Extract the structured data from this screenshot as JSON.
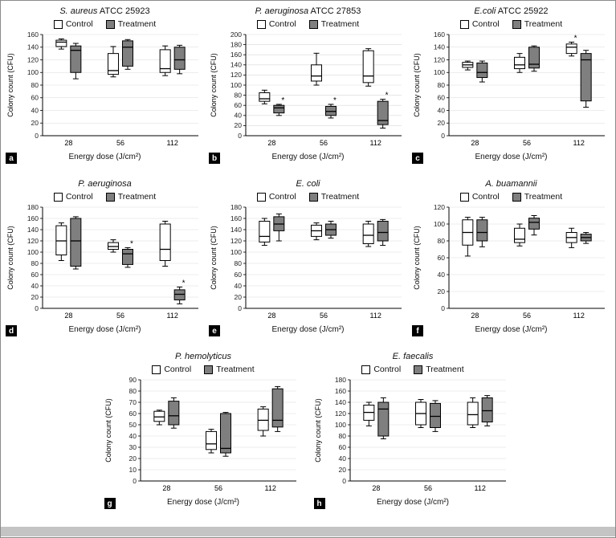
{
  "figure": {
    "xlabel": "Energy dose (J/cm²)",
    "ylabel": "Colony count (CFU)",
    "legend": {
      "control": "Control",
      "treatment": "Treatment"
    },
    "colors": {
      "control": "#ffffff",
      "treatment": "#7f7f7f",
      "box_border": "#000000",
      "grid": "#d9d9d9",
      "axis": "#000000",
      "badge_bg": "#000000",
      "badge_fg": "#ffffff",
      "bottom_bar": "#c4c4c4"
    }
  },
  "chart_data": [
    {
      "type": "boxplot",
      "panel": "a",
      "title_italic": "S. aureus",
      "title_rest": " ATCC 25923",
      "categories": [
        "28",
        "56",
        "112"
      ],
      "ylim": [
        0,
        160
      ],
      "ystep": 20,
      "series": [
        {
          "name": "Control",
          "boxes": [
            [
              137,
              141,
              148,
              151,
              153
            ],
            [
              93,
              97,
              103,
              130,
              141
            ],
            [
              95,
              100,
              106,
              136,
              142
            ]
          ],
          "sig": [
            false,
            false,
            false
          ]
        },
        {
          "name": "Treatment",
          "boxes": [
            [
              90,
              100,
              135,
              142,
              146
            ],
            [
              105,
              110,
              140,
              150,
              152
            ],
            [
              98,
              105,
              120,
              140,
              143
            ]
          ],
          "sig": [
            false,
            false,
            false
          ]
        }
      ]
    },
    {
      "type": "boxplot",
      "panel": "b",
      "title_italic": "P. aeruginosa",
      "title_rest": " ATCC 27853",
      "categories": [
        "28",
        "56",
        "112"
      ],
      "ylim": [
        0,
        200
      ],
      "ystep": 20,
      "series": [
        {
          "name": "Control",
          "boxes": [
            [
              63,
              68,
              73,
              85,
              90
            ],
            [
              100,
              108,
              118,
              140,
              163
            ],
            [
              98,
              105,
              118,
              168,
              172
            ]
          ],
          "sig": [
            false,
            false,
            false
          ]
        },
        {
          "name": "Treatment",
          "boxes": [
            [
              40,
              45,
              55,
              60,
              62
            ],
            [
              35,
              40,
              48,
              58,
              62
            ],
            [
              15,
              22,
              30,
              68,
              72
            ]
          ],
          "sig": [
            true,
            true,
            true
          ]
        }
      ]
    },
    {
      "type": "boxplot",
      "panel": "c",
      "title_italic": "E.coli",
      "title_rest": " ATCC 25922",
      "categories": [
        "28",
        "56",
        "112"
      ],
      "ylim": [
        0,
        160
      ],
      "ystep": 20,
      "series": [
        {
          "name": "Control",
          "boxes": [
            [
              104,
              108,
              112,
              116,
              118
            ],
            [
              100,
              106,
              112,
              124,
              130
            ],
            [
              126,
              130,
              140,
              145,
              148
            ]
          ],
          "sig": [
            false,
            false,
            true
          ]
        },
        {
          "name": "Treatment",
          "boxes": [
            [
              85,
              92,
              100,
              115,
              118
            ],
            [
              102,
              107,
              113,
              140,
              142
            ],
            [
              45,
              55,
              120,
              130,
              135
            ]
          ],
          "sig": [
            false,
            false,
            false
          ]
        }
      ]
    },
    {
      "type": "boxplot",
      "panel": "d",
      "title_italic": "P. aeruginosa",
      "title_rest": "",
      "categories": [
        "28",
        "56",
        "112"
      ],
      "ylim": [
        0,
        180
      ],
      "ystep": 20,
      "series": [
        {
          "name": "Control",
          "boxes": [
            [
              85,
              95,
              120,
              147,
              152
            ],
            [
              100,
              105,
              110,
              117,
              122
            ],
            [
              75,
              85,
              105,
              150,
              155
            ]
          ],
          "sig": [
            false,
            false,
            false
          ]
        },
        {
          "name": "Treatment",
          "boxes": [
            [
              70,
              75,
              120,
              160,
              163
            ],
            [
              73,
              78,
              97,
              105,
              108
            ],
            [
              8,
              15,
              25,
              33,
              38
            ]
          ],
          "sig": [
            false,
            true,
            true
          ]
        }
      ]
    },
    {
      "type": "boxplot",
      "panel": "e",
      "title_italic": "E. coli",
      "title_rest": "",
      "categories": [
        "28",
        "56",
        "112"
      ],
      "ylim": [
        0,
        180
      ],
      "ystep": 20,
      "series": [
        {
          "name": "Control",
          "boxes": [
            [
              112,
              118,
              128,
              155,
              160
            ],
            [
              122,
              128,
              138,
              148,
              152
            ],
            [
              110,
              115,
              130,
              150,
              155
            ]
          ],
          "sig": [
            false,
            false,
            false
          ]
        },
        {
          "name": "Treatment",
          "boxes": [
            [
              120,
              138,
              150,
              163,
              168
            ],
            [
              125,
              130,
              140,
              150,
              155
            ],
            [
              112,
              120,
              135,
              155,
              158
            ]
          ],
          "sig": [
            false,
            false,
            false
          ]
        }
      ]
    },
    {
      "type": "boxplot",
      "panel": "f",
      "title_italic": "A. buamannii",
      "title_rest": "",
      "categories": [
        "28",
        "56",
        "112"
      ],
      "ylim": [
        0,
        120
      ],
      "ystep": 20,
      "series": [
        {
          "name": "Control",
          "boxes": [
            [
              62,
              75,
              90,
              105,
              108
            ],
            [
              74,
              78,
              82,
              95,
              100
            ],
            [
              72,
              78,
              84,
              90,
              95
            ]
          ],
          "sig": [
            false,
            false,
            false
          ]
        },
        {
          "name": "Treatment",
          "boxes": [
            [
              73,
              80,
              90,
              105,
              108
            ],
            [
              87,
              94,
              102,
              107,
              110
            ],
            [
              77,
              80,
              84,
              88,
              90
            ]
          ],
          "sig": [
            false,
            false,
            false
          ]
        }
      ]
    },
    {
      "type": "boxplot",
      "panel": "g",
      "title_italic": "P. hemolyticus",
      "title_rest": "",
      "categories": [
        "28",
        "56",
        "112"
      ],
      "ylim": [
        0,
        90
      ],
      "ystep": 10,
      "series": [
        {
          "name": "Control",
          "boxes": [
            [
              50,
              53,
              57,
              62,
              63
            ],
            [
              25,
              28,
              33,
              44,
              46
            ],
            [
              40,
              45,
              54,
              64,
              66
            ]
          ],
          "sig": [
            false,
            false,
            false
          ]
        },
        {
          "name": "Treatment",
          "boxes": [
            [
              47,
              50,
              58,
              71,
              74
            ],
            [
              22,
              25,
              29,
              60,
              61
            ],
            [
              44,
              48,
              54,
              82,
              84
            ]
          ],
          "sig": [
            false,
            false,
            false
          ]
        }
      ]
    },
    {
      "type": "boxplot",
      "panel": "h",
      "title_italic": "E. faecalis",
      "title_rest": "",
      "categories": [
        "28",
        "56",
        "112"
      ],
      "ylim": [
        0,
        180
      ],
      "ystep": 20,
      "series": [
        {
          "name": "Control",
          "boxes": [
            [
              98,
              108,
              122,
              135,
              140
            ],
            [
              95,
              100,
              120,
              140,
              145
            ],
            [
              95,
              100,
              118,
              140,
              148
            ]
          ],
          "sig": [
            false,
            false,
            false
          ]
        },
        {
          "name": "Treatment",
          "boxes": [
            [
              75,
              80,
              128,
              140,
              148
            ],
            [
              88,
              95,
              115,
              138,
              143
            ],
            [
              98,
              105,
              125,
              148,
              152
            ]
          ],
          "sig": [
            false,
            false,
            false
          ]
        }
      ]
    }
  ]
}
